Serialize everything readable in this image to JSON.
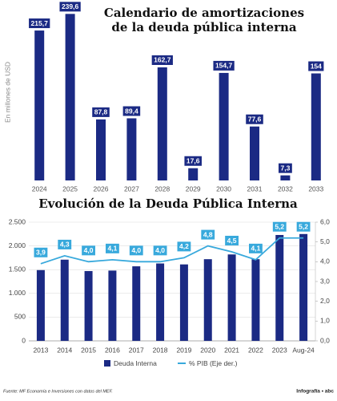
{
  "chart_data": [
    {
      "type": "bar",
      "title": "Calendario de amortizaciones de la deuda pública interna",
      "ylabel": "En millones de USD",
      "categories": [
        "2024",
        "2025",
        "2026",
        "2027",
        "2028",
        "2029",
        "2030",
        "2031",
        "2032",
        "2033"
      ],
      "values": [
        215.7,
        239.6,
        87.8,
        89.4,
        162.7,
        17.6,
        154.7,
        77.6,
        7.3,
        154
      ],
      "value_labels": [
        "215,7",
        "239,6",
        "87,8",
        "89,4",
        "162,7",
        "17,6",
        "154,7",
        "77,6",
        "7,3",
        "154"
      ],
      "color": "#1b2a84",
      "ylim": [
        0,
        240
      ]
    },
    {
      "type": "combo",
      "title": "Evolución de la Deuda Pública Interna",
      "categories": [
        "2013",
        "2014",
        "2015",
        "2016",
        "2017",
        "2018",
        "2019",
        "2020",
        "2021",
        "2022",
        "2023",
        "Aug-24"
      ],
      "series": [
        {
          "name": "Deuda Interna",
          "color": "#1b2a84",
          "kind": "bar",
          "values": [
            1490,
            1710,
            1470,
            1480,
            1570,
            1630,
            1610,
            1720,
            1820,
            1720,
            2230,
            2250
          ]
        },
        {
          "name": "% PIB (Eje der.)",
          "color": "#38a9dc",
          "kind": "line",
          "axis": "y2",
          "values": [
            3.9,
            4.3,
            4.0,
            4.1,
            4.0,
            4.0,
            4.2,
            4.8,
            4.5,
            4.1,
            5.2,
            5.2
          ],
          "value_labels": [
            "3,9",
            "4,3",
            "4,0",
            "4,1",
            "4,0",
            "4,0",
            "4,2",
            "4,8",
            "4,5",
            "4,1",
            "5,2",
            "5,2"
          ]
        }
      ],
      "ylim": [
        0,
        2500
      ],
      "yticks": [
        0,
        500,
        {
          "value": 1000,
          "label": "1.000"
        },
        {
          "value": 1500,
          "label": "1.500"
        },
        {
          "value": 2000,
          "label": "2.000"
        },
        {
          "value": 2500,
          "label": "2.500"
        }
      ],
      "y2lim": [
        0,
        6
      ],
      "y2ticks": [
        {
          "value": 0,
          "label": "0,0"
        },
        {
          "value": 1,
          "label": "1,0"
        },
        {
          "value": 2,
          "label": "2,0"
        },
        {
          "value": 3,
          "label": "3,0"
        },
        {
          "value": 4,
          "label": "4,0"
        },
        {
          "value": 5,
          "label": "5,0"
        },
        {
          "value": 6,
          "label": "6,0"
        }
      ],
      "grid": true
    }
  ],
  "footer": {
    "source": "Fuente: MF Economía e Inversiones con datos del MEF.",
    "credit": "Infografía • abc"
  }
}
